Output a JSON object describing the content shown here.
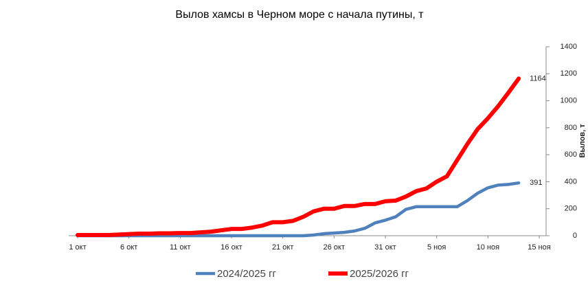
{
  "chart_data": {
    "type": "line",
    "title": "Вылов хамсы в Черном море с начала путины, т",
    "y_label": "Вылов, т",
    "categories": [
      "1 окт",
      null,
      null,
      null,
      null,
      "6 окт",
      null,
      null,
      null,
      null,
      "11 окт",
      null,
      null,
      null,
      null,
      "16 окт",
      null,
      null,
      null,
      null,
      "21 окт",
      null,
      null,
      null,
      null,
      "26 окт",
      null,
      null,
      null,
      null,
      "31 окт",
      null,
      null,
      null,
      null,
      "5 ноя",
      null,
      null,
      null,
      null,
      "10 ноя",
      null,
      null,
      null,
      null,
      "15 ноя"
    ],
    "series": [
      {
        "name": "2024/2025 гг",
        "color": "#4f81bd",
        "values": [
          0,
          0,
          0,
          0,
          0,
          0,
          0,
          0,
          0,
          0,
          0,
          0,
          0,
          0,
          0,
          0,
          0,
          0,
          0,
          0,
          0,
          0,
          0,
          5,
          15,
          20,
          25,
          35,
          55,
          95,
          115,
          140,
          195,
          215,
          215,
          215,
          215,
          215,
          260,
          315,
          355,
          375,
          380,
          391,
          null,
          null
        ]
      },
      {
        "name": "2025/2026 гг",
        "color": "#ff0000",
        "values": [
          5,
          5,
          5,
          5,
          8,
          12,
          15,
          15,
          18,
          18,
          20,
          20,
          25,
          30,
          40,
          50,
          50,
          60,
          75,
          100,
          100,
          110,
          140,
          180,
          200,
          200,
          220,
          220,
          235,
          235,
          255,
          260,
          290,
          330,
          350,
          400,
          440,
          560,
          680,
          790,
          870,
          960,
          1060,
          1164,
          null,
          null
        ]
      }
    ],
    "ylim": [
      0,
      1400
    ],
    "yticks": [
      0,
      200,
      400,
      600,
      800,
      1000,
      1200,
      1400
    ],
    "y_axis_side": "right",
    "legend": "bottom",
    "grid": false
  }
}
